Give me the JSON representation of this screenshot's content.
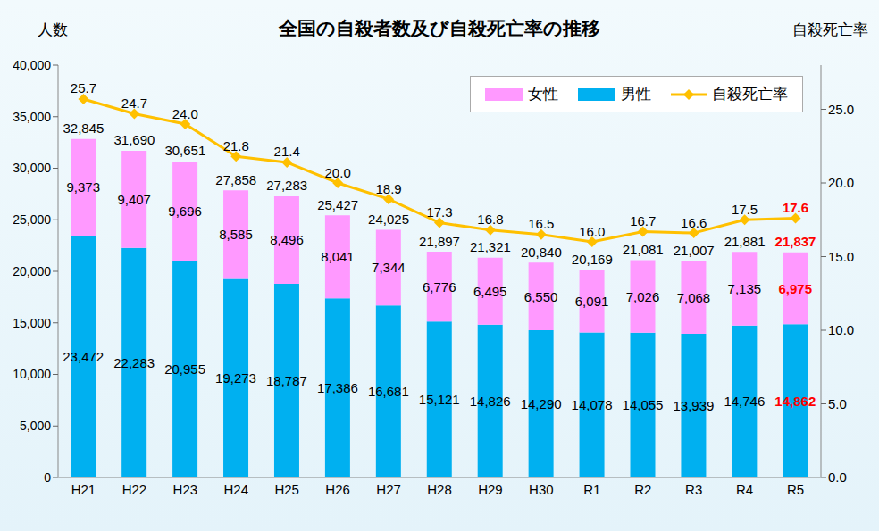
{
  "chart_data": {
    "type": "bar",
    "title": "全国の自殺者数及び自殺死亡率の推移",
    "ylabel": "人数",
    "y2label": "自殺死亡率",
    "categories": [
      "H21",
      "H22",
      "H23",
      "H24",
      "H25",
      "H26",
      "H27",
      "H28",
      "H29",
      "H30",
      "R1",
      "R2",
      "R3",
      "R4",
      "R5"
    ],
    "series": [
      {
        "name": "女性",
        "type": "bar",
        "color": "#FF99FF",
        "values": [
          9373,
          9407,
          9696,
          8585,
          8496,
          8041,
          7344,
          6776,
          6495,
          6550,
          6091,
          7026,
          7068,
          7135,
          6975
        ],
        "value_labels": [
          "9,373",
          "9,407",
          "9,696",
          "8,585",
          "8,496",
          "8,041",
          "7,344",
          "6,776",
          "6,495",
          "6,550",
          "6,091",
          "7,026",
          "7,068",
          "7,135",
          "6,975"
        ]
      },
      {
        "name": "男性",
        "type": "bar",
        "color": "#00B0F0",
        "values": [
          23472,
          22283,
          20955,
          19273,
          18787,
          17386,
          16681,
          15121,
          14826,
          14290,
          14078,
          14055,
          13939,
          14746,
          14862
        ],
        "value_labels": [
          "23,472",
          "22,283",
          "20,955",
          "19,273",
          "18,787",
          "17,386",
          "16,681",
          "15,121",
          "14,826",
          "14,290",
          "14,078",
          "14,055",
          "13,939",
          "14,746",
          "14,862"
        ]
      },
      {
        "name": "自殺死亡率",
        "type": "line",
        "axis": "y2",
        "color": "#FFC000",
        "marker": "diamond",
        "values": [
          25.7,
          24.7,
          24.0,
          21.8,
          21.4,
          20.0,
          18.9,
          17.3,
          16.8,
          16.5,
          16.0,
          16.7,
          16.6,
          17.5,
          17.6
        ],
        "value_labels": [
          "25.7",
          "24.7",
          "24.0",
          "21.8",
          "21.4",
          "20.0",
          "18.9",
          "17.3",
          "16.8",
          "16.5",
          "16.0",
          "16.7",
          "16.6",
          "17.5",
          "17.6"
        ]
      }
    ],
    "totals": {
      "values": [
        32845,
        31690,
        30651,
        27858,
        27283,
        25427,
        24025,
        21897,
        21321,
        20840,
        20169,
        21081,
        21007,
        21881,
        21837
      ],
      "value_labels": [
        "32,845",
        "31,690",
        "30,651",
        "27,858",
        "27,283",
        "25,427",
        "24,025",
        "21,897",
        "21,321",
        "20,840",
        "20,169",
        "21,081",
        "21,007",
        "21,881",
        "21,837"
      ]
    },
    "ylim": [
      0,
      40000
    ],
    "yticks": [
      0,
      {
        "value": 5000,
        "label": "5,000"
      },
      {
        "value": 10000,
        "label": "10,000"
      },
      {
        "value": 15000,
        "label": "15,000"
      },
      {
        "value": 20000,
        "label": "20,000"
      },
      {
        "value": 25000,
        "label": "25,000"
      },
      {
        "value": 30000,
        "label": "30,000"
      },
      {
        "value": 35000,
        "label": "35,000"
      },
      {
        "value": 40000,
        "label": "40,000"
      }
    ],
    "y2lim": [
      0,
      28
    ],
    "y2ticks": [
      {
        "value": 0,
        "label": "0.0"
      },
      {
        "value": 5,
        "label": "5.0"
      },
      {
        "value": 10,
        "label": "10.0"
      },
      {
        "value": 15,
        "label": "15.0"
      },
      {
        "value": 20,
        "label": "20.0"
      },
      {
        "value": 25,
        "label": "25.0"
      }
    ],
    "stacked": true,
    "data_labels": true,
    "legend": "upper right",
    "grid": false
  }
}
